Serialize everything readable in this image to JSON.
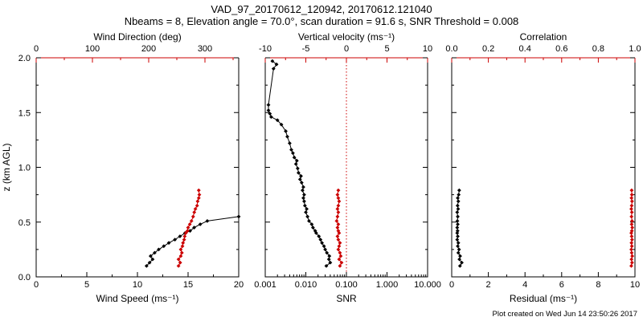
{
  "header": {
    "title": "VAD_97_20170612_120942, 20170612.121040",
    "subtitle": "Nbeams = 8, Elevation angle = 70.0°, scan duration = 91.6 s, SNR Threshold = 0.008"
  },
  "footer": {
    "created": "Plot created on Wed Jun 14 23:50:26 2017"
  },
  "colors": {
    "axis_primary": "#000000",
    "axis_secondary": "#cc0000",
    "background": "#ffffff"
  },
  "chart_data": [
    {
      "type": "line",
      "title": "Wind speed and direction profile",
      "y_axis": {
        "label": "z (km AGL)",
        "min": 0,
        "max": 2,
        "tick_values": [
          0,
          0.5,
          1,
          1.5,
          2
        ],
        "tick_labels": [
          "0.0",
          "0.5",
          "1.0",
          "1.5",
          "2.0"
        ],
        "show_labels": true
      },
      "bottom_axis": {
        "label": "Wind Speed (ms⁻¹)",
        "scale": "linear",
        "min": 0,
        "max": 20,
        "tick_values": [
          0,
          5,
          10,
          15,
          20
        ],
        "tick_labels": [
          "0",
          "5",
          "10",
          "15",
          "20"
        ],
        "color": "#000000"
      },
      "top_axis": {
        "label": "Wind Direction (deg)",
        "scale": "linear",
        "min": 0,
        "max": 360,
        "tick_values": [
          0,
          100,
          200,
          300
        ],
        "tick_labels": [
          "0",
          "100",
          "200",
          "300"
        ],
        "color": "#cc0000"
      },
      "series": [
        {
          "name": "wind-speed",
          "axis": "bottom",
          "color": "#000000",
          "marker": "diamond",
          "points": [
            [
              10.9,
              0.1
            ],
            [
              11.2,
              0.13
            ],
            [
              11.5,
              0.16
            ],
            [
              11.3,
              0.19
            ],
            [
              11.7,
              0.22
            ],
            [
              12.1,
              0.25
            ],
            [
              12.6,
              0.28
            ],
            [
              13.1,
              0.31
            ],
            [
              13.7,
              0.34
            ],
            [
              14.2,
              0.37
            ],
            [
              14.7,
              0.4
            ],
            [
              15.2,
              0.42
            ],
            [
              15.6,
              0.45
            ],
            [
              16.2,
              0.48
            ],
            [
              16.9,
              0.51
            ],
            [
              20.0,
              0.55
            ]
          ]
        },
        {
          "name": "wind-direction",
          "axis": "top",
          "color": "#cc0000",
          "marker": "diamond",
          "points": [
            [
              253,
              0.1
            ],
            [
              256,
              0.13
            ],
            [
              253,
              0.16
            ],
            [
              257,
              0.19
            ],
            [
              259,
              0.22
            ],
            [
              257,
              0.25
            ],
            [
              260,
              0.28
            ],
            [
              261,
              0.31
            ],
            [
              263,
              0.34
            ],
            [
              264,
              0.37
            ],
            [
              266,
              0.4
            ],
            [
              269,
              0.42
            ],
            [
              270,
              0.45
            ],
            [
              273,
              0.48
            ],
            [
              276,
              0.51
            ],
            [
              279,
              0.55
            ],
            [
              281,
              0.59
            ],
            [
              283,
              0.62
            ],
            [
              286,
              0.65
            ],
            [
              287,
              0.69
            ],
            [
              289,
              0.72
            ],
            [
              290,
              0.75
            ],
            [
              289,
              0.79
            ]
          ]
        }
      ]
    },
    {
      "type": "line",
      "title": "SNR and vertical velocity profile",
      "y_axis": {
        "label": "",
        "min": 0,
        "max": 2,
        "tick_values": [
          0,
          0.5,
          1,
          1.5,
          2
        ],
        "tick_labels": [
          "0.0",
          "0.5",
          "1.0",
          "1.5",
          "2.0"
        ],
        "show_labels": false
      },
      "bottom_axis": {
        "label": "SNR",
        "scale": "log",
        "min": 0.001,
        "max": 10,
        "tick_values": [
          0.001,
          0.01,
          0.1,
          1,
          10
        ],
        "tick_labels": [
          "0.001",
          "0.010",
          "0.100",
          "1.000",
          "10.000"
        ],
        "color": "#000000"
      },
      "top_axis": {
        "label": "Vertical velocity (ms⁻¹)",
        "scale": "linear",
        "min": -10,
        "max": 10,
        "tick_values": [
          -10,
          -5,
          0,
          5,
          10
        ],
        "tick_labels": [
          "-10",
          "-5",
          "0",
          "5",
          "10"
        ],
        "color": "#cc0000"
      },
      "reference_lines": [
        {
          "axis": "top",
          "value": 0,
          "color": "#cc0000",
          "style": "dotted"
        }
      ],
      "series": [
        {
          "name": "snr",
          "axis": "bottom",
          "color": "#000000",
          "marker": "diamond",
          "points": [
            [
              0.032,
              0.1
            ],
            [
              0.04,
              0.13
            ],
            [
              0.037,
              0.16
            ],
            [
              0.038,
              0.19
            ],
            [
              0.033,
              0.22
            ],
            [
              0.03,
              0.25
            ],
            [
              0.028,
              0.28
            ],
            [
              0.025,
              0.31
            ],
            [
              0.023,
              0.34
            ],
            [
              0.021,
              0.37
            ],
            [
              0.018,
              0.4
            ],
            [
              0.017,
              0.42
            ],
            [
              0.015,
              0.45
            ],
            [
              0.014,
              0.48
            ],
            [
              0.012,
              0.51
            ],
            [
              0.011,
              0.55
            ],
            [
              0.01,
              0.59
            ],
            [
              0.0105,
              0.62
            ],
            [
              0.0095,
              0.65
            ],
            [
              0.0091,
              0.69
            ],
            [
              0.0087,
              0.72
            ],
            [
              0.0091,
              0.75
            ],
            [
              0.0083,
              0.79
            ],
            [
              0.0087,
              0.82
            ],
            [
              0.0079,
              0.86
            ],
            [
              0.0072,
              0.89
            ],
            [
              0.0076,
              0.92
            ],
            [
              0.0066,
              0.95
            ],
            [
              0.0063,
              0.99
            ],
            [
              0.0057,
              1.03
            ],
            [
              0.006,
              1.06
            ],
            [
              0.0052,
              1.09
            ],
            [
              0.0048,
              1.13
            ],
            [
              0.0044,
              1.16
            ],
            [
              0.004,
              1.22
            ],
            [
              0.0035,
              1.28
            ],
            [
              0.0032,
              1.33
            ],
            [
              0.0025,
              1.39
            ],
            [
              0.002,
              1.43
            ],
            [
              0.0014,
              1.46
            ],
            [
              0.0013,
              1.49
            ],
            [
              0.0012,
              1.52
            ],
            [
              0.0012,
              1.57
            ],
            [
              0.0016,
              1.9
            ],
            [
              0.0019,
              1.94
            ],
            [
              0.0015,
              1.97
            ]
          ]
        },
        {
          "name": "vertical-velocity",
          "axis": "top",
          "color": "#cc0000",
          "marker": "diamond",
          "points": [
            [
              -0.8,
              0.1
            ],
            [
              -0.6,
              0.13
            ],
            [
              -0.9,
              0.16
            ],
            [
              -0.7,
              0.19
            ],
            [
              -0.8,
              0.22
            ],
            [
              -1.0,
              0.25
            ],
            [
              -0.9,
              0.28
            ],
            [
              -0.8,
              0.31
            ],
            [
              -1.0,
              0.34
            ],
            [
              -1.1,
              0.37
            ],
            [
              -0.9,
              0.4
            ],
            [
              -1.0,
              0.42
            ],
            [
              -1.1,
              0.45
            ],
            [
              -1.0,
              0.48
            ],
            [
              -1.2,
              0.51
            ],
            [
              -1.1,
              0.55
            ],
            [
              -1.0,
              0.59
            ],
            [
              -1.1,
              0.62
            ],
            [
              -1.0,
              0.65
            ],
            [
              -0.9,
              0.69
            ],
            [
              -1.0,
              0.72
            ],
            [
              -1.1,
              0.75
            ],
            [
              -1.0,
              0.79
            ]
          ]
        }
      ]
    },
    {
      "type": "line",
      "title": "Residual and correlation profile",
      "y_axis": {
        "label": "",
        "min": 0,
        "max": 2,
        "tick_values": [
          0,
          0.5,
          1,
          1.5,
          2
        ],
        "tick_labels": [
          "0.0",
          "0.5",
          "1.0",
          "1.5",
          "2.0"
        ],
        "show_labels": false
      },
      "bottom_axis": {
        "label": "Residual (ms⁻¹)",
        "scale": "linear",
        "min": 0,
        "max": 10,
        "tick_values": [
          0,
          2,
          4,
          6,
          8,
          10
        ],
        "tick_labels": [
          "0",
          "2",
          "4",
          "6",
          "8",
          "10"
        ],
        "color": "#000000"
      },
      "top_axis": {
        "label": "Correlation",
        "scale": "linear",
        "min": 0,
        "max": 1,
        "tick_values": [
          0,
          0.2,
          0.4,
          0.6,
          0.8,
          1.0
        ],
        "tick_labels": [
          "0.0",
          "0.2",
          "0.4",
          "0.6",
          "0.8",
          "1.0"
        ],
        "color": "#cc0000"
      },
      "series": [
        {
          "name": "residual",
          "axis": "bottom",
          "color": "#000000",
          "marker": "diamond",
          "points": [
            [
              0.45,
              0.1
            ],
            [
              0.55,
              0.13
            ],
            [
              0.42,
              0.16
            ],
            [
              0.46,
              0.19
            ],
            [
              0.36,
              0.22
            ],
            [
              0.4,
              0.25
            ],
            [
              0.33,
              0.28
            ],
            [
              0.36,
              0.31
            ],
            [
              0.3,
              0.34
            ],
            [
              0.33,
              0.37
            ],
            [
              0.3,
              0.4
            ],
            [
              0.32,
              0.42
            ],
            [
              0.3,
              0.45
            ],
            [
              0.33,
              0.48
            ],
            [
              0.31,
              0.51
            ],
            [
              0.33,
              0.55
            ],
            [
              0.3,
              0.59
            ],
            [
              0.35,
              0.62
            ],
            [
              0.32,
              0.65
            ],
            [
              0.36,
              0.69
            ],
            [
              0.33,
              0.72
            ],
            [
              0.38,
              0.75
            ],
            [
              0.41,
              0.79
            ]
          ]
        },
        {
          "name": "correlation",
          "axis": "top",
          "color": "#cc0000",
          "marker": "diamond",
          "points": [
            [
              0.98,
              0.1
            ],
            [
              0.984,
              0.13
            ],
            [
              0.981,
              0.16
            ],
            [
              0.985,
              0.19
            ],
            [
              0.982,
              0.22
            ],
            [
              0.98,
              0.25
            ],
            [
              0.983,
              0.28
            ],
            [
              0.981,
              0.31
            ],
            [
              0.984,
              0.34
            ],
            [
              0.982,
              0.37
            ],
            [
              0.98,
              0.4
            ],
            [
              0.983,
              0.42
            ],
            [
              0.985,
              0.45
            ],
            [
              0.982,
              0.48
            ],
            [
              0.984,
              0.51
            ],
            [
              0.981,
              0.55
            ],
            [
              0.983,
              0.59
            ],
            [
              0.98,
              0.62
            ],
            [
              0.982,
              0.65
            ],
            [
              0.984,
              0.69
            ],
            [
              0.981,
              0.72
            ],
            [
              0.983,
              0.75
            ],
            [
              0.982,
              0.79
            ]
          ]
        }
      ]
    }
  ]
}
